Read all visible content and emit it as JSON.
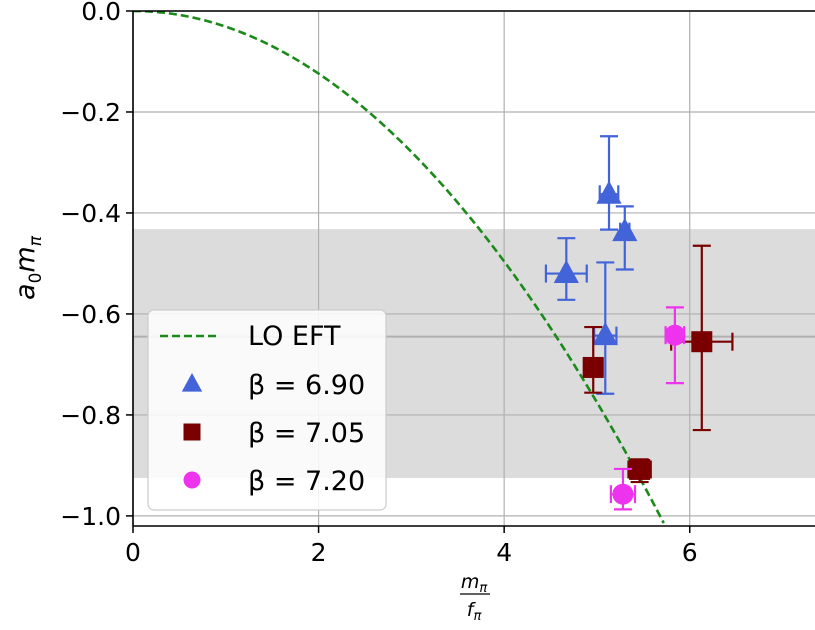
{
  "chart_data": {
    "type": "scatter",
    "xlabel": {
      "num": "m",
      "num_sub": "π",
      "den": "f",
      "den_sub": "π"
    },
    "ylabel": {
      "main": "a",
      "sub1": "0",
      "main2": "m",
      "sub2": "π"
    },
    "xlim": [
      0,
      7.35
    ],
    "ylim": [
      -1.02,
      0.0
    ],
    "x_ticks": [
      0,
      2,
      4,
      6
    ],
    "x_tick_labels": [
      "0",
      "2",
      "4",
      "6"
    ],
    "y_ticks": [
      0.0,
      -0.2,
      -0.4,
      -0.6,
      -0.8,
      -1.0
    ],
    "y_tick_labels": [
      "0.0",
      "−0.2",
      "−0.4",
      "−0.6",
      "−0.8",
      "−1.0"
    ],
    "grid": true,
    "legend_position": "lower-left",
    "band": {
      "center": -0.645,
      "low": -0.925,
      "high": -0.432,
      "color": "#dcdcdc",
      "line_color": "#b0b0b0"
    },
    "lo_eft": {
      "label": "LO EFT",
      "color": "#1b8a1b",
      "coefficient": -0.031,
      "x_max": 5.72
    },
    "series": [
      {
        "name": "β = 6.90",
        "marker": "triangle",
        "color": "#4363d8",
        "points": [
          {
            "x": 5.13,
            "y": -0.363,
            "xerr": 0.1,
            "yerr_lo": 0.07,
            "yerr_hi": 0.115
          },
          {
            "x": 5.3,
            "y": -0.437,
            "xerr": 0.05,
            "yerr_lo": 0.075,
            "yerr_hi": 0.05
          },
          {
            "x": 4.67,
            "y": -0.52,
            "xerr": 0.22,
            "yerr_lo": 0.052,
            "yerr_hi": 0.07
          },
          {
            "x": 5.09,
            "y": -0.643,
            "xerr": 0.12,
            "yerr_lo": 0.115,
            "yerr_hi": 0.145
          }
        ]
      },
      {
        "name": "β = 7.05",
        "marker": "square",
        "color": "#7a0000",
        "points": [
          {
            "x": 4.96,
            "y": -0.706,
            "xerr": 0.1,
            "yerr_lo": 0.05,
            "yerr_hi": 0.08
          },
          {
            "x": 5.46,
            "y": -0.908,
            "xerr": 0.12,
            "yerr_lo": 0.025,
            "yerr_hi": 0.02
          },
          {
            "x": 6.13,
            "y": -0.655,
            "xerr": 0.33,
            "yerr_lo": 0.175,
            "yerr_hi": 0.19
          }
        ]
      },
      {
        "name": "β = 7.20",
        "marker": "circle",
        "color": "#ee33ee",
        "points": [
          {
            "x": 5.28,
            "y": -0.957,
            "xerr": 0.13,
            "yerr_lo": 0.03,
            "yerr_hi": 0.05
          },
          {
            "x": 5.84,
            "y": -0.642,
            "xerr": 0.1,
            "yerr_lo": 0.095,
            "yerr_hi": 0.055
          }
        ]
      }
    ]
  }
}
